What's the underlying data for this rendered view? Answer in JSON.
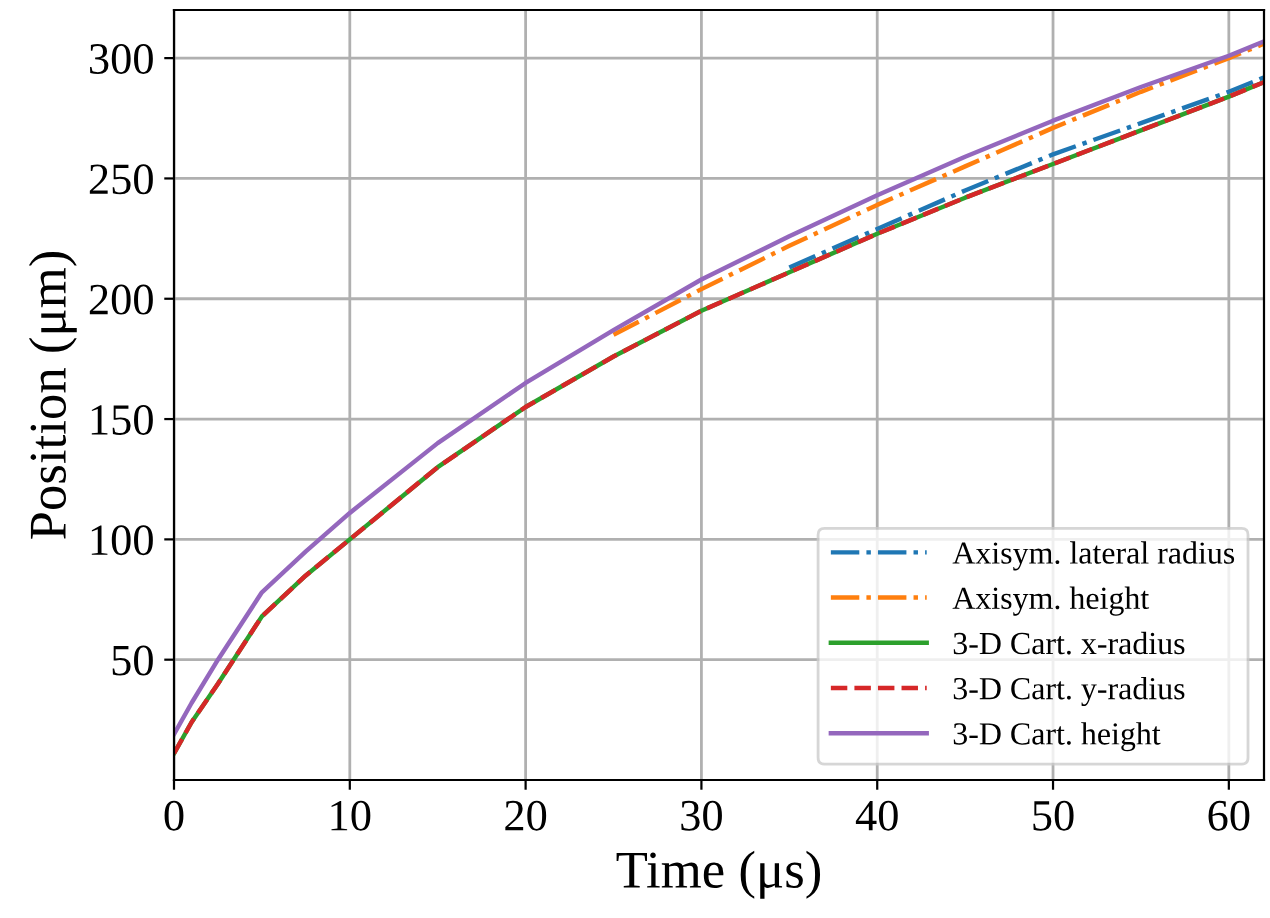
{
  "chart_data": {
    "type": "line",
    "xlabel": "Time (μs)",
    "ylabel": "Position (μm)",
    "x": [
      0,
      1,
      2.5,
      5,
      7.5,
      10,
      15,
      20,
      25,
      30,
      35,
      40,
      45,
      50,
      55,
      60,
      62
    ],
    "series": [
      {
        "name": "Axisym. lateral radius",
        "color": "#1f77b4",
        "line_style": "dashdot",
        "values": [
          null,
          null,
          null,
          null,
          null,
          null,
          null,
          null,
          null,
          null,
          213,
          229,
          245,
          260,
          273,
          286,
          292
        ]
      },
      {
        "name": "Axisym. height",
        "color": "#ff7f0e",
        "line_style": "dashdot",
        "values": [
          null,
          null,
          null,
          null,
          null,
          null,
          null,
          null,
          185,
          204,
          222,
          239,
          255,
          271,
          286,
          300,
          306
        ]
      },
      {
        "name": "3-D Cart. x-radius",
        "color": "#2ca02c",
        "line_style": "solid",
        "values": [
          11,
          24,
          40,
          68,
          85,
          100,
          130,
          155,
          176,
          195,
          211,
          227,
          242,
          256,
          270,
          284,
          290
        ]
      },
      {
        "name": "3-D Cart. y-radius",
        "color": "#d62728",
        "line_style": "dashed",
        "values": [
          11,
          24,
          40,
          68,
          85,
          100,
          130,
          155,
          176,
          195,
          211,
          227,
          242,
          256,
          270,
          284,
          290
        ]
      },
      {
        "name": "3-D Cart. height",
        "color": "#9467bd",
        "line_style": "solid",
        "values": [
          19,
          32,
          50,
          78,
          95,
          111,
          140,
          165,
          187,
          208,
          226,
          243,
          259,
          274,
          288,
          301,
          307
        ]
      }
    ],
    "xlim": [
      0,
      62
    ],
    "ylim": [
      0,
      320
    ],
    "xticks": [
      0,
      10,
      20,
      30,
      40,
      50,
      60
    ],
    "yticks": [
      50,
      100,
      150,
      200,
      250,
      300
    ],
    "grid": true,
    "legend": "bottom right",
    "marker": "none"
  }
}
